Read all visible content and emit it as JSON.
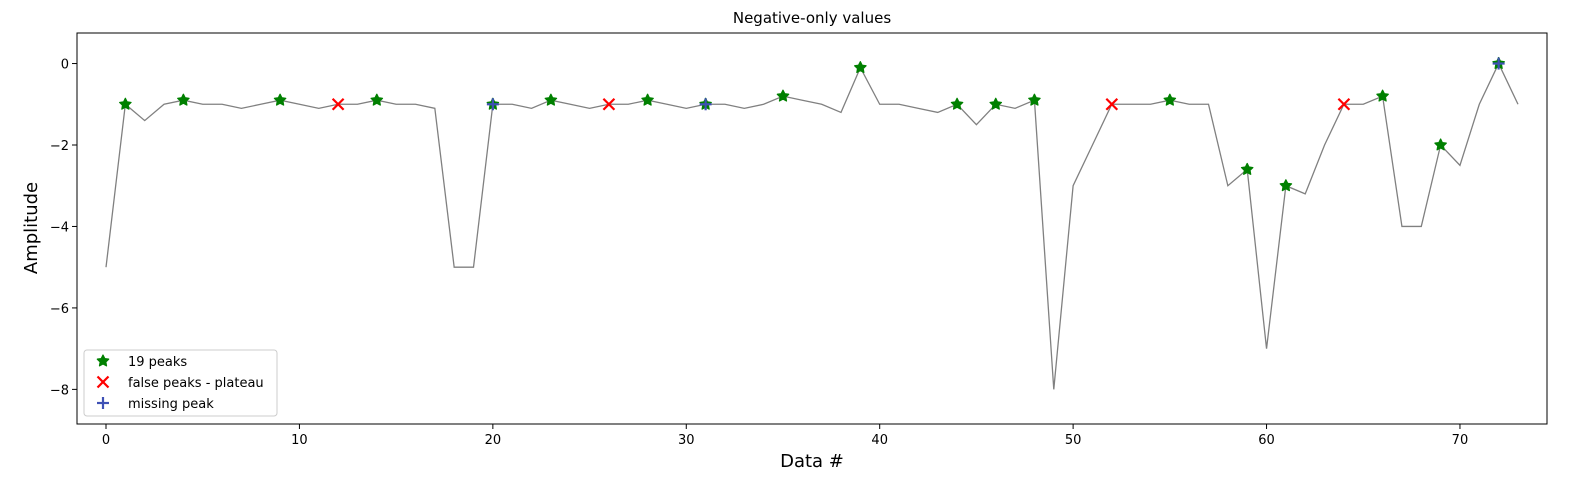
{
  "chart_data": {
    "type": "line",
    "title": "Negative-only values",
    "xlabel": "Data #",
    "ylabel": "Amplitude",
    "xlim": [
      -1.5,
      74.5
    ],
    "ylim": [
      -8.85,
      0.75
    ],
    "xticks": [
      0,
      10,
      20,
      30,
      40,
      50,
      60,
      70
    ],
    "yticks": [
      0,
      -2,
      -4,
      -6,
      -8
    ],
    "grid": false,
    "legend_position": "lower-left",
    "signal": {
      "color": "#808080",
      "x": [
        0,
        1,
        2,
        3,
        4,
        5,
        6,
        7,
        8,
        9,
        10,
        11,
        12,
        13,
        14,
        15,
        16,
        17,
        18,
        19,
        20,
        21,
        22,
        23,
        24,
        25,
        26,
        27,
        28,
        29,
        30,
        31,
        32,
        33,
        34,
        35,
        36,
        37,
        38,
        39,
        40,
        41,
        42,
        43,
        44,
        45,
        46,
        47,
        48,
        49,
        50,
        51,
        52,
        53,
        54,
        55,
        56,
        57,
        58,
        59,
        60,
        61,
        62,
        63,
        64,
        65,
        66,
        67,
        68,
        69,
        70,
        71,
        72,
        73
      ],
      "y": [
        -5,
        -1,
        -1.4,
        -1,
        -0.9,
        -1,
        -1,
        -1.1,
        -1,
        -0.9,
        -1,
        -1.1,
        -1,
        -1,
        -0.9,
        -1,
        -1,
        -1.1,
        -5,
        -5,
        -1,
        -1,
        -1.1,
        -0.9,
        -1,
        -1.1,
        -1,
        -1,
        -0.9,
        -1,
        -1.1,
        -1,
        -1,
        -1.1,
        -1,
        -0.8,
        -0.9,
        -1,
        -1.2,
        -0.1,
        -1,
        -1,
        -1.1,
        -1.2,
        -1,
        -1.5,
        -1,
        -1.1,
        -0.9,
        -8,
        -3,
        -2,
        -1,
        -1,
        -1,
        -0.9,
        -1,
        -1,
        -3,
        -2.6,
        -7,
        -3,
        -3.2,
        -2,
        -1,
        -1,
        -0.8,
        -4,
        -4,
        -2,
        -2.5,
        -1,
        0,
        -1
      ]
    },
    "series": [
      {
        "name": "19 peaks",
        "marker": "star",
        "color": "#008000",
        "x": [
          1,
          4,
          9,
          14,
          20,
          23,
          28,
          31,
          35,
          39,
          44,
          46,
          48,
          55,
          59,
          61,
          66,
          69,
          72
        ],
        "y": [
          -1,
          -0.9,
          -0.9,
          -0.9,
          -1,
          -0.9,
          -0.9,
          -1,
          -0.8,
          -0.1,
          -1,
          -1,
          -0.9,
          -0.9,
          -2.6,
          -3,
          -0.8,
          -2,
          0
        ]
      },
      {
        "name": "false peaks - plateau",
        "marker": "x",
        "color": "#ff0000",
        "x": [
          12,
          26,
          52,
          64
        ],
        "y": [
          -1,
          -1,
          -1,
          -1
        ]
      },
      {
        "name": "missing peak",
        "marker": "plus",
        "color": "#3f51b5",
        "x": [
          20,
          31,
          72
        ],
        "y": [
          -1,
          -1,
          0
        ]
      }
    ]
  }
}
